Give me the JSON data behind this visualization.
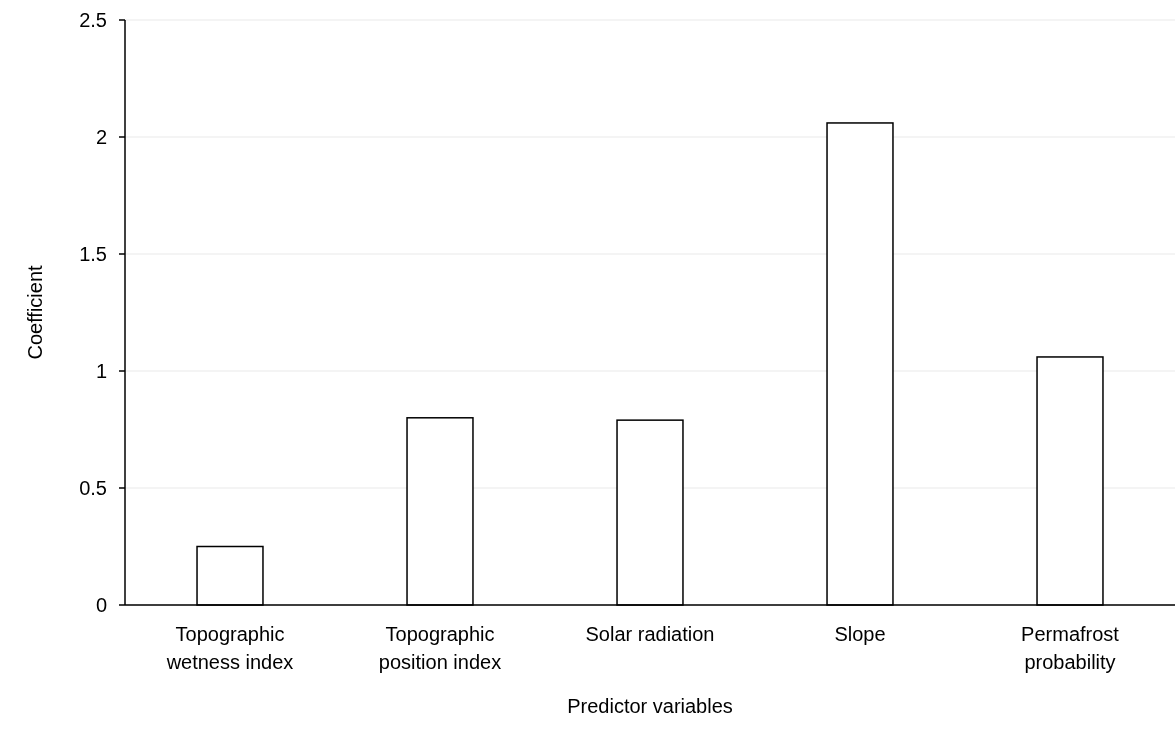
{
  "chart_data": {
    "type": "bar",
    "xlabel": "Predictor variables",
    "ylabel": "Coefficient",
    "categories": [
      "Topographic wetness index",
      "Topographic position index",
      "Solar radiation",
      "Slope",
      "Permafrost probability"
    ],
    "values": [
      0.25,
      0.8,
      0.79,
      2.06,
      1.06
    ],
    "color": "#ffffff",
    "ylim": [
      0,
      2.5
    ],
    "yticks": [
      0,
      0.5,
      1,
      1.5,
      2,
      2.5
    ],
    "grid": "y"
  }
}
